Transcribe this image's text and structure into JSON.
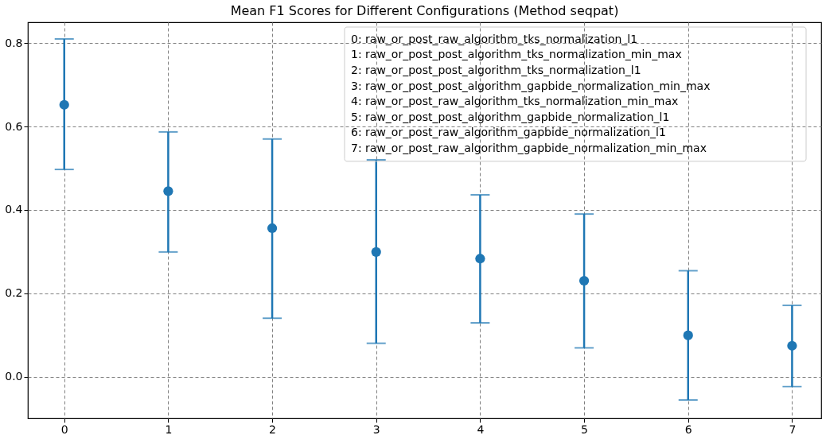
{
  "chart_data": {
    "type": "scatter",
    "title": "Mean F1 Scores for Different Configurations (Method seqpat)",
    "x": [
      0,
      1,
      2,
      3,
      4,
      5,
      6,
      7
    ],
    "series": [
      {
        "color": "#1f77b4",
        "values": [
          0.652,
          0.445,
          0.356,
          0.299,
          0.283,
          0.23,
          0.099,
          0.074
        ],
        "errors": [
          [
            0.497,
            0.81
          ],
          [
            0.299,
            0.587
          ],
          [
            0.14,
            0.57
          ],
          [
            0.08,
            0.52
          ],
          [
            0.129,
            0.436
          ],
          [
            0.069,
            0.39
          ],
          [
            -0.056,
            0.254
          ],
          [
            -0.024,
            0.171
          ]
        ]
      }
    ],
    "xlim": [
      -0.35,
      7.28
    ],
    "xticks": [
      0,
      1,
      2,
      3,
      4,
      5,
      6,
      7
    ],
    "ylim": [
      -0.1,
      0.85
    ],
    "yticks": [
      {
        "value": 0,
        "label": "0.0"
      },
      0.2,
      0.4,
      0.6,
      0.8
    ],
    "grid": true,
    "marker": "circle",
    "annotations": [
      "0: raw_or_post_raw_algorithm_tks_normalization_l1",
      "1: raw_or_post_post_algorithm_tks_normalization_min_max",
      "2: raw_or_post_post_algorithm_tks_normalization_l1",
      "3: raw_or_post_post_algorithm_gapbide_normalization_min_max",
      "4: raw_or_post_raw_algorithm_tks_normalization_min_max",
      "5: raw_or_post_post_algorithm_gapbide_normalization_l1",
      "6: raw_or_post_raw_algorithm_gapbide_normalization_l1",
      "7: raw_or_post_raw_algorithm_gapbide_normalization_min_max"
    ]
  }
}
